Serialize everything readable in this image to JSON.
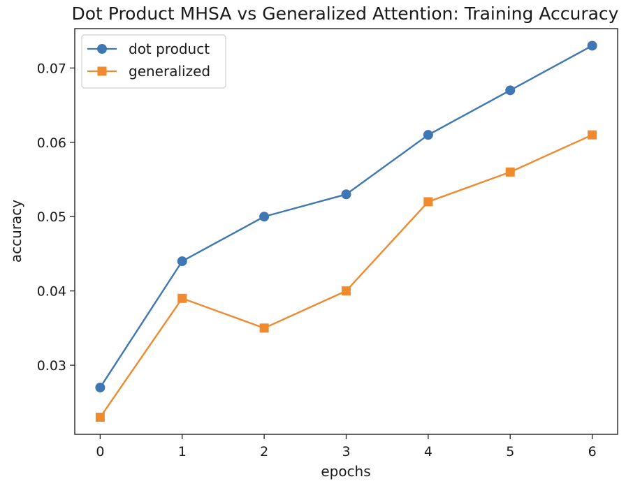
{
  "chart_data": {
    "type": "line",
    "title": "Dot Product MHSA vs Generalized Attention: Training Accuracy",
    "xlabel": "epochs",
    "ylabel": "accuracy",
    "x": [
      0,
      1,
      2,
      3,
      4,
      5,
      6
    ],
    "xticks": [
      "0",
      "1",
      "2",
      "3",
      "4",
      "5",
      "6"
    ],
    "yticks": [
      "0.03",
      "0.04",
      "0.05",
      "0.06",
      "0.07"
    ],
    "xlim": [
      -0.31,
      6.31
    ],
    "ylim": [
      0.0207,
      0.0753
    ],
    "grid": false,
    "legend_position": "upper-left",
    "series": [
      {
        "name": "dot product",
        "marker": "circle",
        "color": "#3f76b4",
        "values": [
          0.027,
          0.044,
          0.05,
          0.053,
          0.061,
          0.067,
          0.073
        ]
      },
      {
        "name": "generalized",
        "marker": "square",
        "color": "#ef8a2f",
        "values": [
          0.023,
          0.039,
          0.035,
          0.04,
          0.052,
          0.056,
          0.061
        ]
      }
    ]
  }
}
